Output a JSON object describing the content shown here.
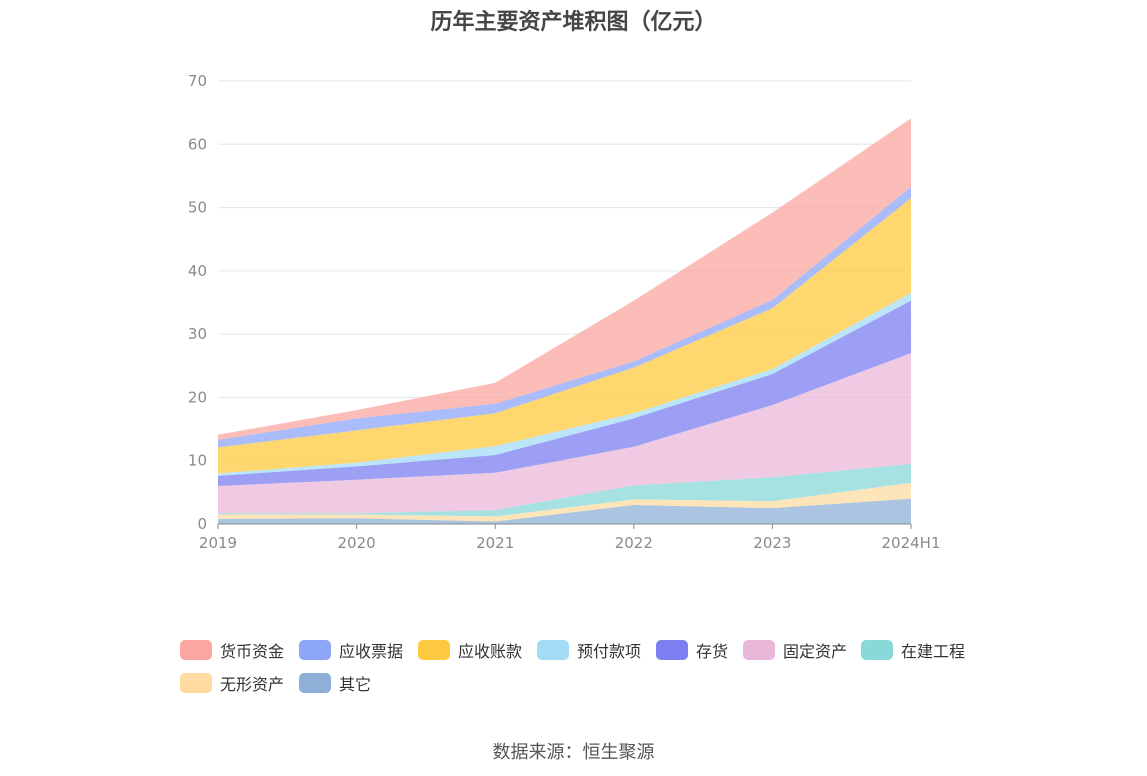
{
  "chart_data": {
    "type": "area",
    "title": "历年主要资产堆积图（亿元）",
    "categories": [
      "2019",
      "2020",
      "2021",
      "2022",
      "2023",
      "2024H1"
    ],
    "ylim": [
      0,
      70
    ],
    "yticks": [
      0,
      10,
      20,
      30,
      40,
      50,
      60,
      70
    ],
    "grid": true,
    "legend_position": "bottom",
    "stacked": true,
    "series": [
      {
        "name": "其它",
        "color": "#8eb0d8",
        "values": [
          0.8,
          0.9,
          0.4,
          3.0,
          2.5,
          4.0
        ]
      },
      {
        "name": "无形资产",
        "color": "#fddba1",
        "values": [
          0.7,
          0.6,
          0.8,
          0.9,
          1.1,
          2.5
        ]
      },
      {
        "name": "在建工程",
        "color": "#8ad8d8",
        "values": [
          0.2,
          0.2,
          1.0,
          2.2,
          3.8,
          3.0
        ]
      },
      {
        "name": "固定资产",
        "color": "#e9b8d8",
        "values": [
          4.3,
          5.3,
          5.9,
          6.1,
          11.4,
          17.5
        ]
      },
      {
        "name": "存货",
        "color": "#7b7ff0",
        "values": [
          1.6,
          2.1,
          2.8,
          4.5,
          4.9,
          8.3
        ]
      },
      {
        "name": "预付款项",
        "color": "#a4dcf6",
        "values": [
          0.4,
          0.6,
          1.4,
          0.8,
          0.8,
          1.2
        ]
      },
      {
        "name": "应收账款",
        "color": "#fdc93f",
        "values": [
          4.1,
          5.1,
          5.2,
          7.2,
          9.6,
          15.0
        ]
      },
      {
        "name": "应收票据",
        "color": "#8ea6f8",
        "values": [
          1.2,
          1.9,
          1.5,
          1.0,
          1.3,
          1.8
        ]
      },
      {
        "name": "货币资金",
        "color": "#fba6a0",
        "values": [
          0.8,
          1.3,
          3.3,
          9.6,
          13.8,
          10.8
        ]
      }
    ]
  },
  "legend": {
    "items": [
      {
        "label": "货币资金",
        "color": "#fba6a0"
      },
      {
        "label": "应收票据",
        "color": "#8ea6f8"
      },
      {
        "label": "应收账款",
        "color": "#fdc93f"
      },
      {
        "label": "预付款项",
        "color": "#a4dcf6"
      },
      {
        "label": "存货",
        "color": "#7b7ff0"
      },
      {
        "label": "固定资产",
        "color": "#e9b8d8"
      },
      {
        "label": "在建工程",
        "color": "#8ad8d8"
      },
      {
        "label": "无形资产",
        "color": "#fddba1"
      },
      {
        "label": "其它",
        "color": "#8eb0d8"
      }
    ]
  },
  "source": "数据来源：恒生聚源"
}
